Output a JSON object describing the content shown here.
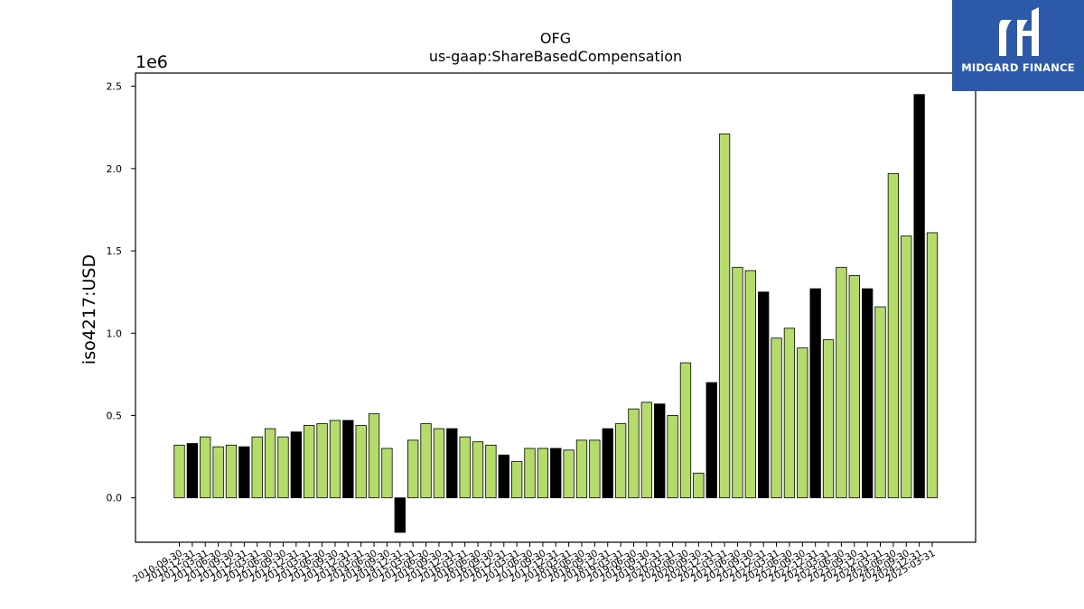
{
  "brand": {
    "name": "MIDGARD FINANCE",
    "bg_color": "#2c5aa8",
    "text_color": "#ffffff"
  },
  "chart_data": {
    "type": "bar",
    "title": "OFG",
    "subtitle": "us-gaap:ShareBasedCompensation",
    "ylabel": "iso4217:USD",
    "y_scale_label": "1e6",
    "ylim": [
      -0.27,
      2.58
    ],
    "yticks": [
      0.0,
      0.5,
      1.0,
      1.5,
      2.0,
      2.5
    ],
    "ytick_labels": [
      "0.0",
      "0.5",
      "1.0",
      "1.5",
      "2.0",
      "2.5"
    ],
    "grid": false,
    "colors": {
      "quarter": "#b5dc6b",
      "fiscal_year_end": "#000000",
      "edge": "#000000"
    },
    "categories": [
      "2010-09-30",
      "2010-12-31",
      "2011-03-31",
      "2011-06-30",
      "2011-09-30",
      "2011-12-31",
      "2012-03-31",
      "2012-06-30",
      "2012-09-30",
      "2012-12-31",
      "2013-03-31",
      "2013-06-30",
      "2013-09-30",
      "2013-12-31",
      "2014-03-31",
      "2014-06-30",
      "2014-09-30",
      "2014-12-31",
      "2015-03-31",
      "2015-06-30",
      "2015-09-30",
      "2015-12-31",
      "2016-03-31",
      "2016-06-30",
      "2016-09-30",
      "2016-12-31",
      "2017-03-31",
      "2017-06-30",
      "2017-09-30",
      "2017-12-31",
      "2018-03-31",
      "2018-06-30",
      "2018-09-30",
      "2018-12-31",
      "2019-03-31",
      "2019-06-30",
      "2019-09-30",
      "2019-12-31",
      "2020-03-31",
      "2020-06-30",
      "2020-09-30",
      "2020-12-31",
      "2021-03-31",
      "2021-06-30",
      "2021-09-30",
      "2021-12-31",
      "2022-03-31",
      "2022-06-30",
      "2022-09-30",
      "2022-12-31",
      "2023-03-31",
      "2023-06-30",
      "2023-09-30",
      "2023-12-31",
      "2024-03-31",
      "2024-06-30",
      "2024-09-30",
      "2024-12-31",
      "2025-03-31"
    ],
    "values": [
      0.32,
      0.33,
      0.37,
      0.31,
      0.32,
      0.31,
      0.37,
      0.42,
      0.37,
      0.4,
      0.44,
      0.45,
      0.47,
      0.47,
      0.44,
      0.51,
      0.3,
      -0.21,
      0.35,
      0.45,
      0.42,
      0.42,
      0.37,
      0.34,
      0.32,
      0.26,
      0.22,
      0.3,
      0.3,
      0.3,
      0.29,
      0.35,
      0.35,
      0.42,
      0.45,
      0.54,
      0.58,
      0.57,
      0.5,
      0.82,
      0.15,
      0.7,
      2.21,
      1.4,
      1.38,
      1.25,
      0.97,
      1.03,
      0.91,
      1.27,
      0.96,
      1.4,
      1.35,
      1.27,
      1.16,
      1.97,
      1.59,
      2.45,
      1.61
    ],
    "fiscal_year_end": [
      false,
      true,
      false,
      false,
      false,
      true,
      false,
      false,
      false,
      true,
      false,
      false,
      false,
      true,
      false,
      false,
      false,
      true,
      false,
      false,
      false,
      true,
      false,
      false,
      false,
      true,
      false,
      false,
      false,
      true,
      false,
      false,
      false,
      true,
      false,
      false,
      false,
      true,
      false,
      false,
      false,
      true,
      false,
      false,
      false,
      true,
      false,
      false,
      false,
      true,
      false,
      false,
      false,
      true,
      false,
      false,
      false,
      true,
      false
    ]
  }
}
